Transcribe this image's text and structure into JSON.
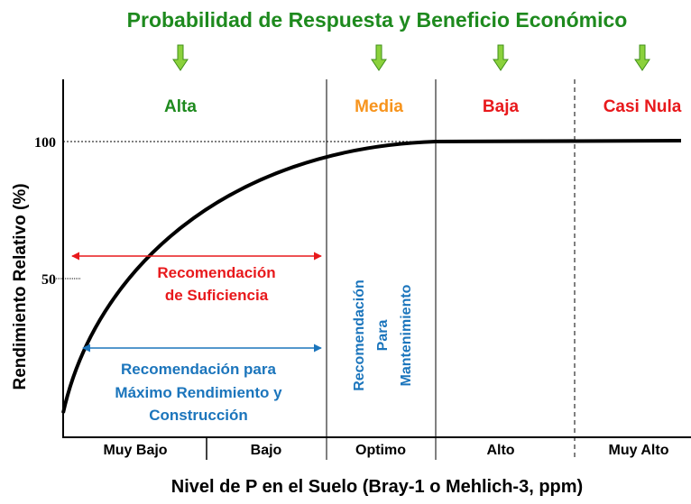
{
  "title": "Probabilidad de Respuesta y Beneficio Económico",
  "zones": [
    "Alta",
    "Media",
    "Baja",
    "Casi Nula"
  ],
  "y_axis": {
    "title": "Rendimiento Relativo (%)",
    "ticks": [
      "100",
      "50"
    ]
  },
  "x_axis": {
    "title": "Nivel de P en el Suelo (Bray-1 o Mehlich-3, ppm)",
    "categories": [
      "Muy Bajo",
      "Bajo",
      "Optimo",
      "Alto",
      "Muy Alto"
    ]
  },
  "annotations": {
    "sufficiency": [
      "Recomendación",
      "de Suficiencia"
    ],
    "max_yield": [
      "Recomendación para",
      "Máximo Rendimiento y",
      "Construcción"
    ],
    "maintenance": [
      "Recomendación",
      "Para",
      "Mantenimiento"
    ]
  }
}
